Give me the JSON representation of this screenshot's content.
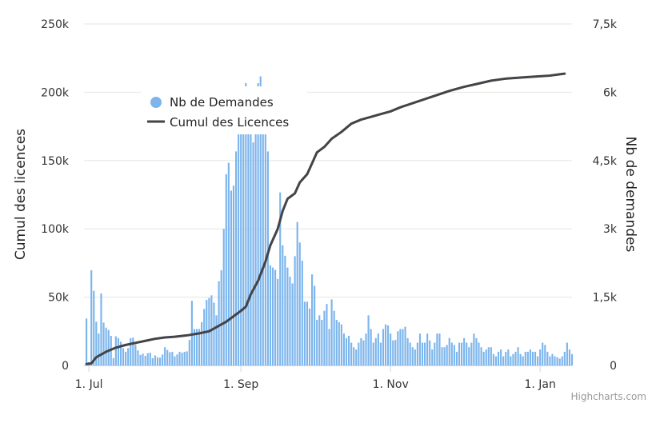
{
  "chart_data": {
    "type": "bar+line",
    "credits": "Highcharts.com",
    "x_axis": {
      "type": "datetime",
      "range": [
        "2020-06-29",
        "2021-01-14"
      ],
      "ticks": [
        {
          "date": "2020-07-01",
          "label": "1. Jul"
        },
        {
          "date": "2020-09-01",
          "label": "1. Sep"
        },
        {
          "date": "2020-11-01",
          "label": "1. Nov"
        },
        {
          "date": "2021-01-01",
          "label": "1. Jan"
        }
      ]
    },
    "y_axis_left": {
      "title": "Cumul des licences",
      "range": [
        0,
        250000
      ],
      "ticks": [
        {
          "value": 0,
          "label": "0"
        },
        {
          "value": 50000,
          "label": "50k"
        },
        {
          "value": 100000,
          "label": "100k"
        },
        {
          "value": 150000,
          "label": "150k"
        },
        {
          "value": 200000,
          "label": "200k"
        },
        {
          "value": 250000,
          "label": "250k"
        }
      ],
      "grid": true
    },
    "y_axis_right": {
      "title": "Nb de demandes",
      "range": [
        0,
        7500
      ],
      "ticks": [
        {
          "value": 0,
          "label": "0"
        },
        {
          "value": 1500,
          "label": "1,5k"
        },
        {
          "value": 3000,
          "label": "3k"
        },
        {
          "value": 4500,
          "label": "4,5k"
        },
        {
          "value": 6000,
          "label": "6k"
        },
        {
          "value": 7500,
          "label": "7,5k"
        }
      ]
    },
    "legend": {
      "position": "top-left",
      "items": [
        {
          "name": "Nb de Demandes",
          "symbol": "circle",
          "color": "#7cb5ec"
        },
        {
          "name": "Cumul des Licences",
          "symbol": "line",
          "color": "#434348"
        }
      ]
    },
    "series": [
      {
        "name": "Nb de Demandes",
        "type": "column",
        "axis": "right",
        "color": "#7cb5ec",
        "start_date": "2020-06-30",
        "values": [
          1030,
          70,
          2090,
          1640,
          960,
          700,
          1580,
          940,
          830,
          780,
          650,
          160,
          640,
          600,
          520,
          380,
          300,
          380,
          600,
          610,
          460,
          330,
          230,
          260,
          210,
          270,
          280,
          160,
          220,
          180,
          170,
          240,
          400,
          340,
          290,
          300,
          200,
          240,
          300,
          280,
          300,
          310,
          560,
          1420,
          800,
          800,
          800,
          950,
          1240,
          1440,
          1480,
          1540,
          1380,
          1100,
          1850,
          2090,
          3000,
          4200,
          4450,
          3840,
          3950,
          4700,
          5500,
          5600,
          5700,
          6200,
          5800,
          5200,
          4900,
          5500,
          6200,
          6350,
          6000,
          5100,
          4700,
          2200,
          2150,
          2100,
          1900,
          3800,
          2640,
          2410,
          2150,
          1950,
          1800,
          2400,
          3150,
          2700,
          2300,
          1400,
          1400,
          1250,
          2000,
          1750,
          1000,
          1100,
          1000,
          1200,
          1350,
          800,
          1450,
          1200,
          1000,
          950,
          900,
          700,
          600,
          650,
          500,
          400,
          350,
          500,
          600,
          550,
          700,
          1100,
          800,
          500,
          600,
          700,
          500,
          800,
          900,
          880,
          700,
          550,
          560,
          750,
          800,
          800,
          850,
          600,
          500,
          400,
          350,
          500,
          700,
          500,
          500,
          700,
          550,
          350,
          500,
          700,
          700,
          400,
          400,
          450,
          600,
          500,
          450,
          300,
          500,
          500,
          600,
          500,
          400,
          500,
          700,
          600,
          500,
          400,
          300,
          350,
          400,
          400,
          250,
          200,
          300,
          350,
          200,
          300,
          350,
          200,
          250,
          300,
          400,
          250,
          200,
          300,
          300,
          350,
          300,
          300,
          200,
          350,
          500,
          450,
          300,
          200,
          250,
          200,
          180,
          150,
          200,
          300,
          500,
          350,
          250
        ]
      },
      {
        "name": "Cumul des Licences",
        "type": "line",
        "axis": "left",
        "color": "#434348",
        "points": [
          [
            "2020-06-30",
            1000
          ],
          [
            "2020-07-02",
            1500
          ],
          [
            "2020-07-04",
            6000
          ],
          [
            "2020-07-08",
            10000
          ],
          [
            "2020-07-12",
            13000
          ],
          [
            "2020-07-16",
            15000
          ],
          [
            "2020-07-20",
            16500
          ],
          [
            "2020-07-24",
            18000
          ],
          [
            "2020-07-28",
            19500
          ],
          [
            "2020-08-01",
            20500
          ],
          [
            "2020-08-05",
            21000
          ],
          [
            "2020-08-10",
            22000
          ],
          [
            "2020-08-15",
            23500
          ],
          [
            "2020-08-19",
            25000
          ],
          [
            "2020-08-23",
            29000
          ],
          [
            "2020-08-26",
            32000
          ],
          [
            "2020-08-29",
            36000
          ],
          [
            "2020-09-01",
            40000
          ],
          [
            "2020-09-03",
            43000
          ],
          [
            "2020-09-05",
            52000
          ],
          [
            "2020-09-08",
            62000
          ],
          [
            "2020-09-11",
            76000
          ],
          [
            "2020-09-13",
            88000
          ],
          [
            "2020-09-16",
            100000
          ],
          [
            "2020-09-18",
            113000
          ],
          [
            "2020-09-20",
            122000
          ],
          [
            "2020-09-23",
            126000
          ],
          [
            "2020-09-25",
            134000
          ],
          [
            "2020-09-28",
            140000
          ],
          [
            "2020-09-30",
            148000
          ],
          [
            "2020-10-02",
            156000
          ],
          [
            "2020-10-05",
            160000
          ],
          [
            "2020-10-08",
            166000
          ],
          [
            "2020-10-12",
            171000
          ],
          [
            "2020-10-16",
            177000
          ],
          [
            "2020-10-20",
            180000
          ],
          [
            "2020-10-24",
            182000
          ],
          [
            "2020-10-28",
            184000
          ],
          [
            "2020-11-01",
            186000
          ],
          [
            "2020-11-05",
            189000
          ],
          [
            "2020-11-10",
            192000
          ],
          [
            "2020-11-15",
            195000
          ],
          [
            "2020-11-20",
            198000
          ],
          [
            "2020-11-25",
            201000
          ],
          [
            "2020-12-01",
            204000
          ],
          [
            "2020-12-06",
            206000
          ],
          [
            "2020-12-12",
            208500
          ],
          [
            "2020-12-18",
            210000
          ],
          [
            "2020-12-24",
            210800
          ],
          [
            "2020-12-30",
            211500
          ],
          [
            "2021-01-05",
            212200
          ],
          [
            "2021-01-09",
            213200
          ],
          [
            "2021-01-11",
            213600
          ]
        ]
      }
    ]
  }
}
